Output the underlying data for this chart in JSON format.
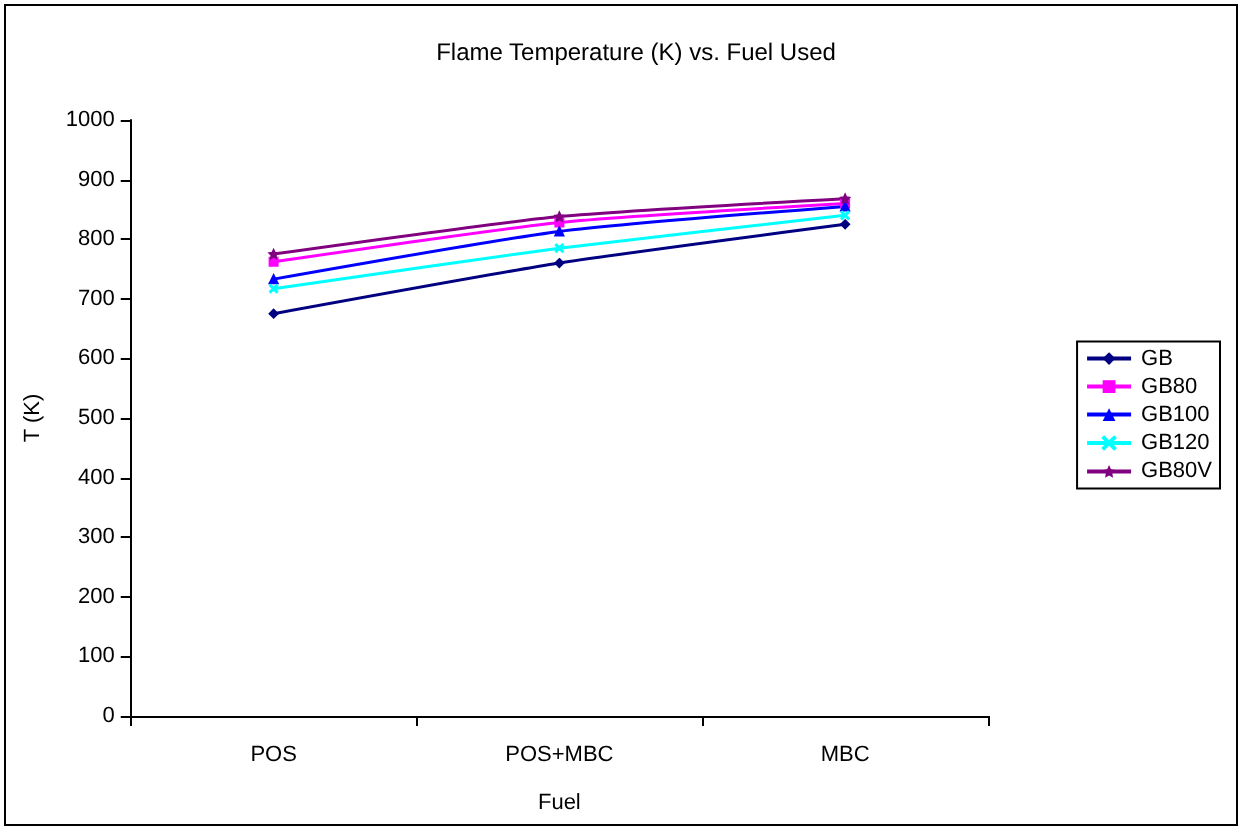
{
  "chart_data": {
    "type": "line",
    "title": "Flame Temperature (K) vs. Fuel Used",
    "xlabel": "Fuel",
    "ylabel": "T (K)",
    "categories": [
      "POS",
      "POS+MBC",
      "MBC"
    ],
    "series": [
      {
        "name": "GB",
        "color": "#000080",
        "marker": "diamond",
        "values": [
          675,
          760,
          825
        ]
      },
      {
        "name": "GB80",
        "color": "#ff00ff",
        "marker": "square",
        "values": [
          762,
          828,
          860
        ]
      },
      {
        "name": "GB100",
        "color": "#0000ff",
        "marker": "triangle",
        "values": [
          733,
          813,
          855
        ]
      },
      {
        "name": "GB120",
        "color": "#00ffff",
        "marker": "cross",
        "values": [
          717,
          785,
          840
        ]
      },
      {
        "name": "GB80V",
        "color": "#800080",
        "marker": "star",
        "values": [
          775,
          838,
          868
        ]
      }
    ],
    "ylim": [
      0,
      1000
    ],
    "yticks": [
      0,
      100,
      200,
      300,
      400,
      500,
      600,
      700,
      800,
      900,
      1000
    ],
    "grid": false,
    "legend": "right",
    "line_style": "solid"
  }
}
